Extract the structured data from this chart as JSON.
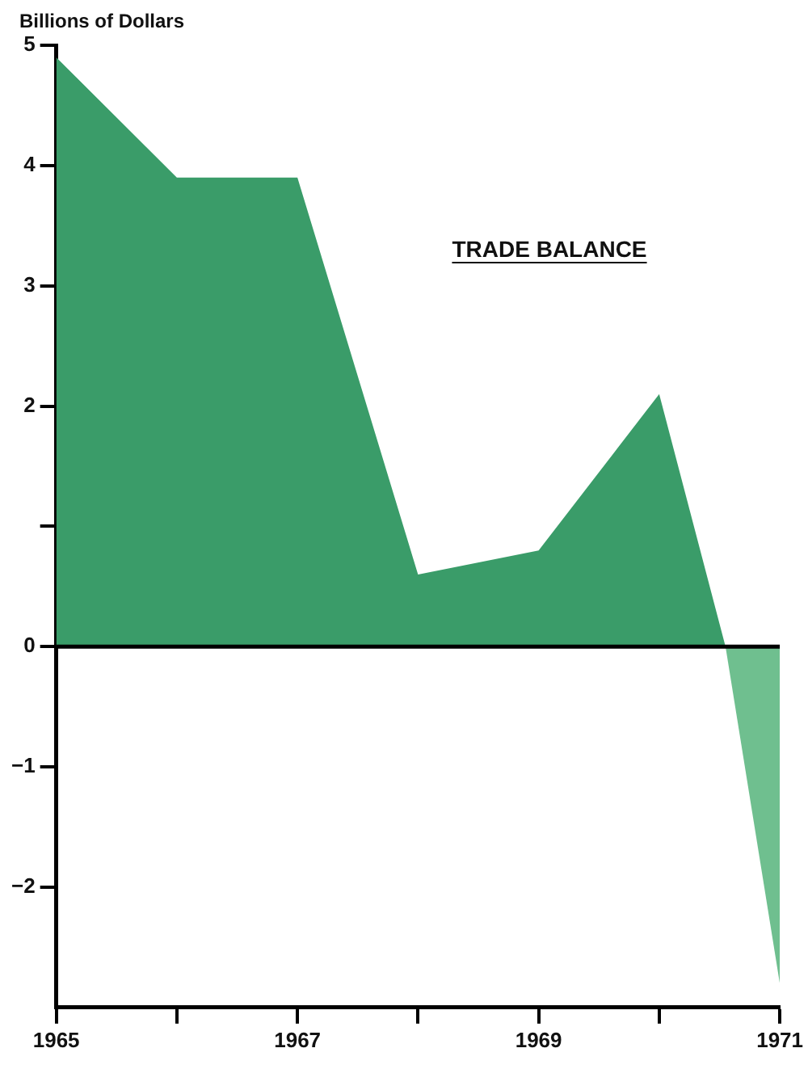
{
  "chart_data": {
    "type": "area",
    "ylabel": "Billions of Dollars",
    "annotations": [
      "TRADE BALANCE"
    ],
    "series": [
      {
        "color": "#3a9c69",
        "x": [
          1965,
          1966,
          1967,
          1968,
          1969,
          1970,
          1970.55
        ],
        "values": [
          4.9,
          3.9,
          3.9,
          0.6,
          0.8,
          2.1,
          0
        ]
      },
      {
        "color": "#6fbf8f",
        "x": [
          1970.55,
          1971
        ],
        "values": [
          0,
          -2.8
        ]
      }
    ],
    "xlim": [
      1965,
      1971
    ],
    "xticks": [
      1965,
      {
        "value": 1966,
        "label": null
      },
      1967,
      {
        "value": 1968,
        "label": null
      },
      1969,
      {
        "value": 1970,
        "label": null
      },
      1971
    ],
    "ylim": [
      -3,
      5
    ],
    "yticks": [
      -2,
      -1,
      0,
      {
        "value": 1,
        "label": null
      },
      2,
      3,
      4,
      5
    ],
    "ref_lines": [
      {
        "axis": "y",
        "value": 0,
        "color": "#000000"
      }
    ],
    "grid": false,
    "legend": false
  }
}
